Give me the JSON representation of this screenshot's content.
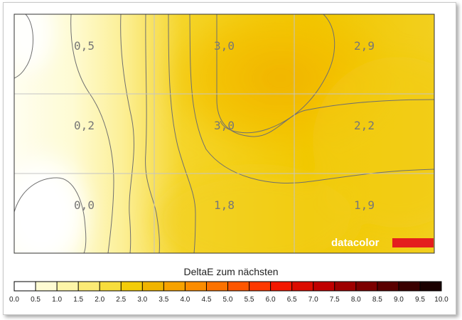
{
  "chart_data": {
    "type": "heatmap",
    "title": "",
    "rows": 3,
    "cols": 3,
    "values": [
      [
        0.5,
        3.0,
        2.9
      ],
      [
        0.2,
        3.0,
        2.2
      ],
      [
        0.0,
        1.8,
        1.9
      ]
    ],
    "cell_labels": [
      [
        "0,5",
        "3,0",
        "2,9"
      ],
      [
        "0,2",
        "3,0",
        "2,2"
      ],
      [
        "0,0",
        "1,8",
        "1,9"
      ]
    ],
    "colorbar": {
      "title": "DeltaE zum nächsten",
      "min": 0.0,
      "max": 10.0,
      "step": 0.5,
      "tick_labels": [
        "0.0",
        "0.5",
        "1.0",
        "1.5",
        "2.0",
        "2.5",
        "3.0",
        "3.5",
        "4.0",
        "4.5",
        "5.0",
        "5.5",
        "6.0",
        "6.5",
        "7.0",
        "7.5",
        "8.0",
        "8.5",
        "9.0",
        "9.5",
        "10.0"
      ],
      "colors": [
        "#ffffff",
        "#fefbd3",
        "#fdf5a8",
        "#fbea75",
        "#f7dd3c",
        "#f3cc0a",
        "#f0b400",
        "#f7a200",
        "#fb8c00",
        "#fc7200",
        "#fd5600",
        "#fe3800",
        "#f31800",
        "#dc0c00",
        "#c00000",
        "#9e0000",
        "#7c0000",
        "#5a0000",
        "#3a0000",
        "#1a0000"
      ]
    },
    "grid": true,
    "legend_position": "bottom"
  },
  "brand": {
    "name": "datacolor",
    "accent": "#e41e1e"
  }
}
